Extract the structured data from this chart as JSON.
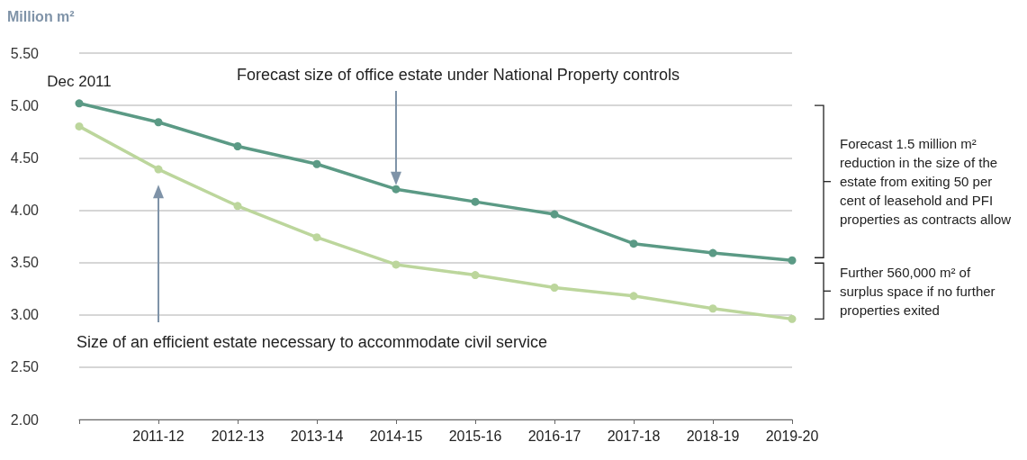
{
  "chart_data": {
    "type": "line",
    "ylabel": "Million m²",
    "categories": [
      null,
      "2011-12",
      "2012-13",
      "2013-14",
      "2014-15",
      "2015-16",
      "2016-17",
      "2017-18",
      "2018-19",
      "2019-20"
    ],
    "ylim": [
      2,
      5.5
    ],
    "yticks": [
      {
        "value": 2,
        "label": "2.00"
      },
      {
        "value": 2.5,
        "label": "2.50"
      },
      {
        "value": 3,
        "label": "3.00"
      },
      {
        "value": 3.5,
        "label": "3.50"
      },
      {
        "value": 4,
        "label": "4.00"
      },
      {
        "value": 4.5,
        "label": "4.50"
      },
      {
        "value": 5,
        "label": "5.00"
      },
      {
        "value": 5.5,
        "label": "5.50"
      }
    ],
    "series": [
      {
        "name": "Forecast size of office estate under National Property controls",
        "color": "#5b9a85",
        "values": [
          5.02,
          4.84,
          4.61,
          4.44,
          4.2,
          4.08,
          3.96,
          3.68,
          3.59,
          3.52
        ]
      },
      {
        "name": "Size of an efficient estate necessary to accommodate civil service",
        "color": "#bcd69c",
        "values": [
          4.8,
          4.39,
          4.04,
          3.74,
          3.48,
          3.38,
          3.26,
          3.18,
          3.06,
          2.96
        ]
      }
    ],
    "annotations": [
      {
        "text": "Dec 2011",
        "y": 5.02
      },
      "Forecast 1.5 million m² reduction in the size of the estate from exiting 50 per cent of leasehold and PFI properties as contracts allow",
      "Further 560,000 m² of surplus space if no further properties exited"
    ],
    "grid": "y",
    "legend": false,
    "marker": "circle",
    "line_style": "solid"
  }
}
